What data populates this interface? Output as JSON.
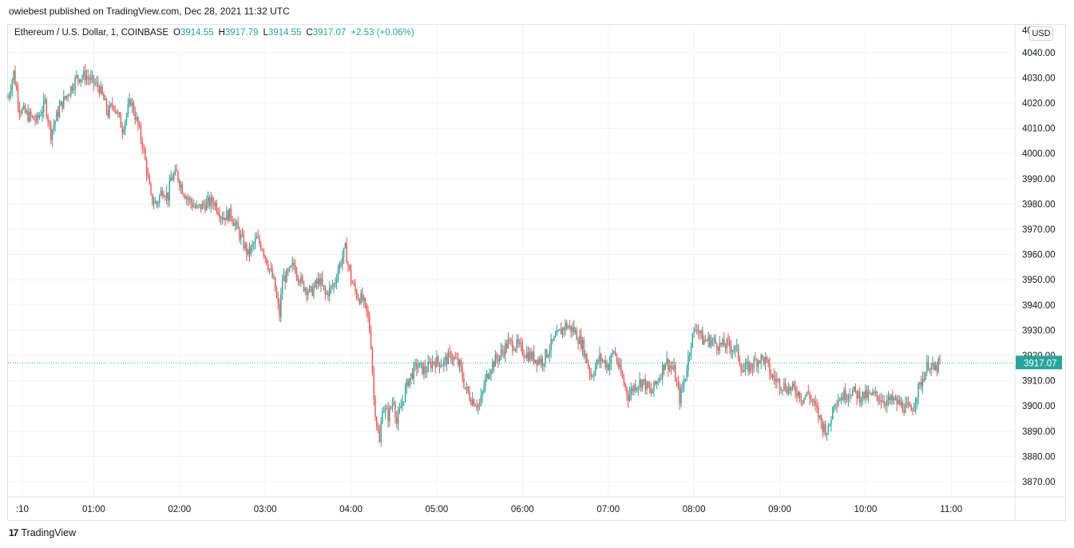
{
  "header": {
    "published_line": "owiebest published on TradingView.com, Dec 28, 2021 11:32 UTC"
  },
  "legend": {
    "symbol": "Ethereum / U.S. Dollar, 1, COINBASE",
    "o_label": "O",
    "o_value": "3914.55",
    "h_label": "H",
    "h_value": "3917.79",
    "l_label": "L",
    "l_value": "3914.55",
    "c_label": "C",
    "c_value": "3917.07",
    "change": "+2.53 (+0.06%)"
  },
  "currency_button": "USD",
  "footer": {
    "brand": "TradingView",
    "logo_glyph": "17"
  },
  "colors": {
    "up": "#26a69a",
    "down": "#ef5350",
    "grid": "#f0f3fa",
    "last_price": "#26a69a"
  },
  "chart_data": {
    "type": "candlestick",
    "title": "Ethereum / U.S. Dollar, 1, COINBASE",
    "y_ticks": [
      "4040.00",
      "4030.00",
      "4020.00",
      "4010.00",
      "4000.00",
      "3990.00",
      "3980.00",
      "3970.00",
      "3960.00",
      "3950.00",
      "3940.00",
      "3930.00",
      "3920.00",
      "3910.00",
      "3900.00",
      "3890.00",
      "3880.00",
      "3870.00"
    ],
    "y_tick_values": [
      4040,
      4030,
      4020,
      4010,
      4000,
      3990,
      3980,
      3970,
      3960,
      3950,
      3940,
      3930,
      3920,
      3910,
      3900,
      3890,
      3880,
      3870
    ],
    "top_tick_partial": "40",
    "x_ticks": [
      ":10",
      "01:00",
      "02:00",
      "03:00",
      "04:00",
      "05:00",
      "06:00",
      "07:00",
      "08:00",
      "09:00",
      "10:00",
      "11:00"
    ],
    "x_tick_minutes": [
      10,
      60,
      120,
      180,
      240,
      300,
      360,
      420,
      480,
      540,
      600,
      660
    ],
    "ylim": [
      3864,
      4051
    ],
    "x_range_minutes": [
      0,
      704
    ],
    "last_price": 3917.07,
    "last_price_label": "3917.07",
    "close_path": [
      {
        "t": 0,
        "p": 4022
      },
      {
        "t": 4,
        "p": 4032
      },
      {
        "t": 8,
        "p": 4018
      },
      {
        "t": 14,
        "p": 4015
      },
      {
        "t": 20,
        "p": 4013
      },
      {
        "t": 26,
        "p": 4020
      },
      {
        "t": 30,
        "p": 4008
      },
      {
        "t": 36,
        "p": 4018
      },
      {
        "t": 42,
        "p": 4024
      },
      {
        "t": 48,
        "p": 4030
      },
      {
        "t": 54,
        "p": 4031
      },
      {
        "t": 58,
        "p": 4029
      },
      {
        "t": 64,
        "p": 4026
      },
      {
        "t": 70,
        "p": 4016
      },
      {
        "t": 74,
        "p": 4020
      },
      {
        "t": 80,
        "p": 4010
      },
      {
        "t": 86,
        "p": 4021
      },
      {
        "t": 90,
        "p": 4013
      },
      {
        "t": 94,
        "p": 4004
      },
      {
        "t": 98,
        "p": 3990
      },
      {
        "t": 100,
        "p": 3982
      },
      {
        "t": 104,
        "p": 3980
      },
      {
        "t": 108,
        "p": 3986
      },
      {
        "t": 112,
        "p": 3983
      },
      {
        "t": 114,
        "p": 3990
      },
      {
        "t": 118,
        "p": 3992
      },
      {
        "t": 122,
        "p": 3986
      },
      {
        "t": 126,
        "p": 3982
      },
      {
        "t": 132,
        "p": 3978
      },
      {
        "t": 138,
        "p": 3980
      },
      {
        "t": 144,
        "p": 3981
      },
      {
        "t": 150,
        "p": 3975
      },
      {
        "t": 156,
        "p": 3976
      },
      {
        "t": 162,
        "p": 3968
      },
      {
        "t": 168,
        "p": 3960
      },
      {
        "t": 174,
        "p": 3966
      },
      {
        "t": 178,
        "p": 3963
      },
      {
        "t": 182,
        "p": 3956
      },
      {
        "t": 186,
        "p": 3949
      },
      {
        "t": 190,
        "p": 3936
      },
      {
        "t": 192,
        "p": 3950
      },
      {
        "t": 196,
        "p": 3952
      },
      {
        "t": 200,
        "p": 3956
      },
      {
        "t": 206,
        "p": 3948
      },
      {
        "t": 212,
        "p": 3945
      },
      {
        "t": 218,
        "p": 3950
      },
      {
        "t": 222,
        "p": 3944
      },
      {
        "t": 228,
        "p": 3948
      },
      {
        "t": 232,
        "p": 3956
      },
      {
        "t": 236,
        "p": 3962
      },
      {
        "t": 240,
        "p": 3950
      },
      {
        "t": 244,
        "p": 3944
      },
      {
        "t": 248,
        "p": 3942
      },
      {
        "t": 252,
        "p": 3935
      },
      {
        "t": 254,
        "p": 3925
      },
      {
        "t": 256,
        "p": 3903
      },
      {
        "t": 258,
        "p": 3893
      },
      {
        "t": 260,
        "p": 3885
      },
      {
        "t": 262,
        "p": 3900
      },
      {
        "t": 266,
        "p": 3896
      },
      {
        "t": 270,
        "p": 3903
      },
      {
        "t": 272,
        "p": 3893
      },
      {
        "t": 276,
        "p": 3902
      },
      {
        "t": 280,
        "p": 3910
      },
      {
        "t": 286,
        "p": 3916
      },
      {
        "t": 292,
        "p": 3914
      },
      {
        "t": 298,
        "p": 3918
      },
      {
        "t": 304,
        "p": 3917
      },
      {
        "t": 310,
        "p": 3920
      },
      {
        "t": 316,
        "p": 3916
      },
      {
        "t": 320,
        "p": 3907
      },
      {
        "t": 324,
        "p": 3903
      },
      {
        "t": 330,
        "p": 3900
      },
      {
        "t": 334,
        "p": 3910
      },
      {
        "t": 338,
        "p": 3916
      },
      {
        "t": 344,
        "p": 3920
      },
      {
        "t": 350,
        "p": 3925
      },
      {
        "t": 356,
        "p": 3924
      },
      {
        "t": 362,
        "p": 3921
      },
      {
        "t": 368,
        "p": 3919
      },
      {
        "t": 374,
        "p": 3918
      },
      {
        "t": 380,
        "p": 3924
      },
      {
        "t": 386,
        "p": 3929
      },
      {
        "t": 390,
        "p": 3932
      },
      {
        "t": 396,
        "p": 3930
      },
      {
        "t": 402,
        "p": 3924
      },
      {
        "t": 408,
        "p": 3912
      },
      {
        "t": 414,
        "p": 3919
      },
      {
        "t": 420,
        "p": 3916
      },
      {
        "t": 424,
        "p": 3922
      },
      {
        "t": 428,
        "p": 3914
      },
      {
        "t": 434,
        "p": 3904
      },
      {
        "t": 438,
        "p": 3908
      },
      {
        "t": 444,
        "p": 3910
      },
      {
        "t": 450,
        "p": 3905
      },
      {
        "t": 456,
        "p": 3912
      },
      {
        "t": 460,
        "p": 3918
      },
      {
        "t": 466,
        "p": 3914
      },
      {
        "t": 470,
        "p": 3903
      },
      {
        "t": 474,
        "p": 3912
      },
      {
        "t": 478,
        "p": 3926
      },
      {
        "t": 482,
        "p": 3932
      },
      {
        "t": 486,
        "p": 3926
      },
      {
        "t": 492,
        "p": 3926
      },
      {
        "t": 498,
        "p": 3924
      },
      {
        "t": 504,
        "p": 3924
      },
      {
        "t": 510,
        "p": 3922
      },
      {
        "t": 514,
        "p": 3914
      },
      {
        "t": 520,
        "p": 3916
      },
      {
        "t": 526,
        "p": 3919
      },
      {
        "t": 530,
        "p": 3918
      },
      {
        "t": 534,
        "p": 3912
      },
      {
        "t": 540,
        "p": 3909
      },
      {
        "t": 546,
        "p": 3907
      },
      {
        "t": 552,
        "p": 3906
      },
      {
        "t": 556,
        "p": 3903
      },
      {
        "t": 560,
        "p": 3905
      },
      {
        "t": 566,
        "p": 3898
      },
      {
        "t": 570,
        "p": 3892
      },
      {
        "t": 574,
        "p": 3890
      },
      {
        "t": 578,
        "p": 3902
      },
      {
        "t": 584,
        "p": 3904
      },
      {
        "t": 590,
        "p": 3906
      },
      {
        "t": 596,
        "p": 3904
      },
      {
        "t": 602,
        "p": 3904
      },
      {
        "t": 608,
        "p": 3904
      },
      {
        "t": 614,
        "p": 3902
      },
      {
        "t": 620,
        "p": 3902
      },
      {
        "t": 626,
        "p": 3900
      },
      {
        "t": 632,
        "p": 3898
      },
      {
        "t": 636,
        "p": 3905
      },
      {
        "t": 640,
        "p": 3911
      },
      {
        "t": 644,
        "p": 3917
      },
      {
        "t": 648,
        "p": 3914
      },
      {
        "t": 652,
        "p": 3917
      }
    ]
  }
}
